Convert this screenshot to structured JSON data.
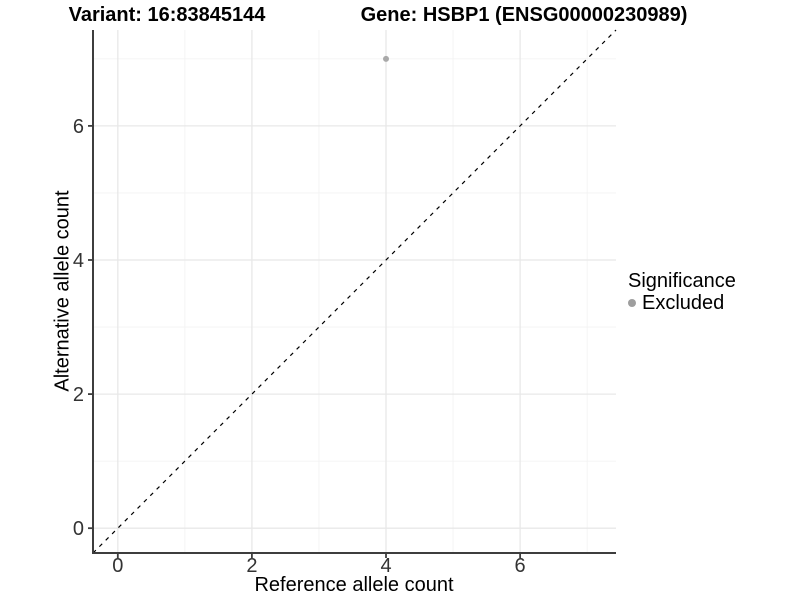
{
  "chart_data": {
    "type": "scatter",
    "variant_title": "Variant: 16:83845144",
    "gene_title": "Gene: HSBP1 (ENSG00000230989)",
    "xlabel": "Reference allele count",
    "ylabel": "Alternative allele count",
    "xlim": [
      -0.37,
      7.43
    ],
    "ylim": [
      -0.37,
      7.43
    ],
    "x_major_ticks": [
      0,
      2,
      4,
      6
    ],
    "y_major_ticks": [
      0,
      2,
      4,
      6
    ],
    "x_minor_gridlines": [
      1,
      3,
      5,
      7
    ],
    "y_minor_gridlines": [
      1,
      3,
      5,
      7
    ],
    "grid": true,
    "reference_line": {
      "type": "identity y=x",
      "style": "dashed",
      "color": "#000000"
    },
    "series": [
      {
        "name": "Excluded",
        "color": "#a9a9a9",
        "points": [
          {
            "x": 4,
            "y": 7
          }
        ]
      }
    ],
    "legend": {
      "position": "right",
      "title": "Significance",
      "items": [
        {
          "label": "Excluded",
          "color": "#9e9e9e"
        }
      ]
    },
    "style": {
      "grid_major_color": "#e8e8e8",
      "grid_minor_color": "#f3f3f3",
      "axis_line_color": "#3d3d3d",
      "tick_label_color": "#333333",
      "point_radius": 3
    }
  }
}
